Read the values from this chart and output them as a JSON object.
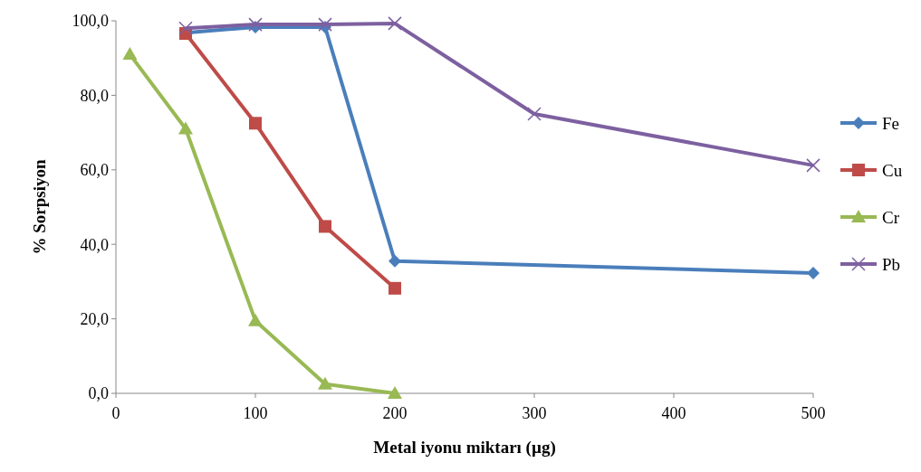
{
  "chart_data": {
    "type": "line",
    "xlabel": "Metal iyonu miktarı (µg)",
    "ylabel": "% Sorpsiyon",
    "xlim": [
      0,
      500
    ],
    "xticks": [
      0,
      100,
      200,
      300,
      400,
      500
    ],
    "ylim": [
      0,
      100
    ],
    "yticks": [
      {
        "value": 0,
        "label": "0,0"
      },
      {
        "value": 20,
        "label": "20,0"
      },
      {
        "value": 40,
        "label": "40,0"
      },
      {
        "value": 60,
        "label": "60,0"
      },
      {
        "value": 80,
        "label": "80,0"
      },
      {
        "value": 100,
        "label": "100,0"
      }
    ],
    "grid": false,
    "legend": "right",
    "series": [
      {
        "name": "Fe",
        "color": "#4a7ebb",
        "marker": "diamond",
        "x": [
          50,
          100,
          150,
          200,
          500
        ],
        "values": [
          96.8,
          98.3,
          98.3,
          35.5,
          32.3
        ]
      },
      {
        "name": "Cu",
        "color": "#be4b48",
        "marker": "square",
        "x": [
          50,
          100,
          150,
          200
        ],
        "values": [
          96.6,
          72.5,
          44.8,
          28.2
        ]
      },
      {
        "name": "Cr",
        "color": "#98b954",
        "marker": "triangle",
        "x": [
          10,
          50,
          100,
          150,
          200
        ],
        "values": [
          91,
          71,
          19.5,
          2.5,
          0
        ]
      },
      {
        "name": "Pb",
        "color": "#7d60a0",
        "marker": "cross",
        "x": [
          50,
          100,
          150,
          200,
          300,
          500
        ],
        "values": [
          98,
          99,
          99,
          99.3,
          75,
          61.2
        ]
      }
    ]
  }
}
